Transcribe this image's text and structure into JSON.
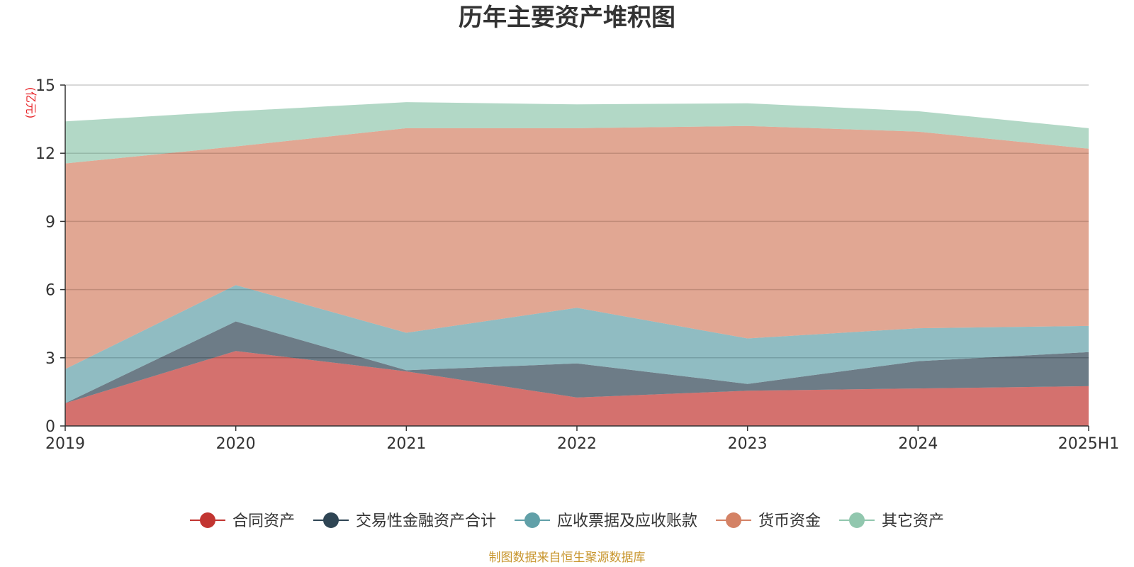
{
  "chart_data": {
    "type": "area",
    "stacked": true,
    "title": "历年主要资产堆积图",
    "unit_label": "(亿元)",
    "x": [
      "2019",
      "2020",
      "2021",
      "2022",
      "2023",
      "2024",
      "2025H1"
    ],
    "ylim": [
      0,
      15
    ],
    "yticks": [
      0,
      3,
      6,
      9,
      12,
      15
    ],
    "grid": true,
    "legend_position": "bottom",
    "series": [
      {
        "name": "合同资产",
        "color": "#c23531",
        "values": [
          1.0,
          3.3,
          2.4,
          1.25,
          1.55,
          1.65,
          1.75
        ]
      },
      {
        "name": "交易性金融资产合计",
        "color": "#2f4554",
        "values": [
          0.0,
          1.3,
          0.05,
          1.5,
          0.3,
          1.2,
          1.5
        ]
      },
      {
        "name": "应收票据及应收账款",
        "color": "#61a0a8",
        "values": [
          1.5,
          1.6,
          1.65,
          2.45,
          2.0,
          1.45,
          1.15
        ]
      },
      {
        "name": "货币资金",
        "color": "#d48265",
        "values": [
          9.05,
          6.1,
          9.0,
          7.9,
          9.35,
          8.65,
          7.8
        ]
      },
      {
        "name": "其它资产",
        "color": "#91c7ae",
        "values": [
          1.85,
          1.55,
          1.15,
          1.05,
          1.0,
          0.9,
          0.9
        ]
      }
    ]
  },
  "footer": {
    "source": "制图数据来自恒生聚源数据库"
  }
}
